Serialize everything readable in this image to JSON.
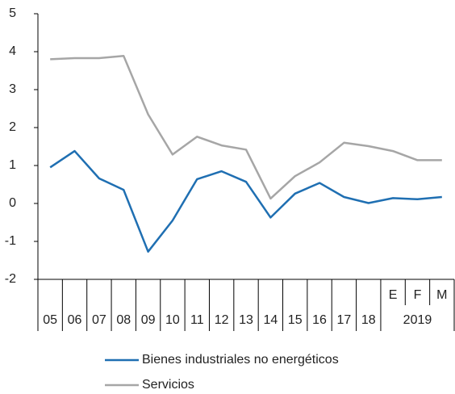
{
  "chart_data": {
    "type": "line",
    "categories": [
      "05",
      "06",
      "07",
      "08",
      "09",
      "10",
      "11",
      "12",
      "13",
      "14",
      "15",
      "16",
      "17",
      "18",
      "E",
      "F",
      "M"
    ],
    "x_groups": [
      {
        "label": "2019",
        "first": 14,
        "count": 3
      }
    ],
    "series": [
      {
        "name": "Bienes industriales no energéticos",
        "color": "#1f6fb2",
        "values": [
          0.95,
          1.38,
          0.66,
          0.36,
          -1.27,
          -0.45,
          0.64,
          0.85,
          0.57,
          -0.37,
          0.26,
          0.54,
          0.17,
          0.01,
          0.14,
          0.11,
          0.17
        ]
      },
      {
        "name": "Servicios",
        "color": "#a6a6a6",
        "values": [
          3.8,
          3.83,
          3.83,
          3.89,
          2.35,
          1.29,
          1.76,
          1.53,
          1.42,
          0.13,
          0.72,
          1.08,
          1.6,
          1.51,
          1.38,
          1.14,
          1.14
        ]
      }
    ],
    "ylim": [
      -2,
      5
    ],
    "yticks": [
      -2,
      -1,
      0,
      1,
      2,
      3,
      4,
      5
    ],
    "legend": "bottom"
  }
}
